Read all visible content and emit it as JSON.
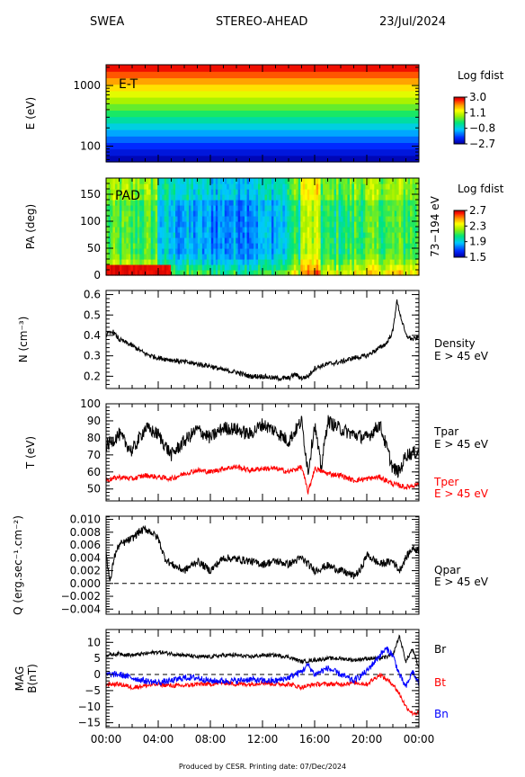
{
  "header": {
    "instrument": "SWEA",
    "spacecraft": "STEREO-AHEAD",
    "date": "23/Jul/2024"
  },
  "footer": "Produced by CESR.   Printing date: 07/Dec/2024",
  "x_axis": {
    "ticks": [
      "00:00",
      "04:00",
      "08:00",
      "12:00",
      "16:00",
      "20:00",
      "00:00"
    ],
    "range_hours": [
      0,
      24
    ]
  },
  "colors": {
    "black": "#000000",
    "red": "#ff0000",
    "blue": "#0000ff"
  },
  "chart_data": [
    {
      "type": "heatmap",
      "ylabel": "E (eV)",
      "yscale": "log",
      "ylim": [
        55,
        2200
      ],
      "yticks": [
        "1000",
        "100"
      ],
      "ytick_values": [
        1000,
        100
      ],
      "panel_label": "E-T",
      "colorbar": {
        "title": "Log fdist",
        "ticks": [
          "3.0",
          "1.1",
          "−0.8",
          "−2.7"
        ],
        "range": [
          -2.7,
          3.0
        ]
      },
      "energy_rows_logf": [
        -2.6,
        -2.3,
        -2.0,
        -1.6,
        -1.2,
        -0.8,
        -0.4,
        0.0,
        0.4,
        0.8,
        1.2,
        1.6,
        2.0,
        2.4,
        2.8
      ]
    },
    {
      "type": "heatmap",
      "ylabel": "PA (deg)",
      "ylim": [
        0,
        180
      ],
      "yticks": [
        "150",
        "100",
        "50",
        "0"
      ],
      "ytick_values": [
        150,
        100,
        50,
        0
      ],
      "panel_label": "PAD",
      "right_label": "73−194 eV",
      "colorbar": {
        "title": "Log fdist",
        "ticks": [
          "2.7",
          "2.3",
          "1.9",
          "1.5"
        ],
        "range": [
          1.5,
          2.7
        ]
      }
    },
    {
      "type": "line",
      "ylabel": "N (cm⁻³)",
      "ylim": [
        0.14,
        0.62
      ],
      "yticks": [
        "0.6",
        "0.5",
        "0.4",
        "0.3",
        "0.2"
      ],
      "ytick_values": [
        0.6,
        0.5,
        0.4,
        0.3,
        0.2
      ],
      "series": [
        {
          "name": "Density",
          "label2": "E > 45 eV",
          "color": "black",
          "x": [
            0,
            0.5,
            1,
            2,
            3,
            4,
            5,
            6,
            7,
            8,
            9,
            10,
            11,
            12,
            13,
            14,
            14.5,
            15,
            15.5,
            16,
            17,
            18,
            19,
            20,
            21,
            21.5,
            22,
            22.3,
            22.7,
            23,
            23.5,
            24
          ],
          "y": [
            0.4,
            0.42,
            0.38,
            0.35,
            0.31,
            0.29,
            0.28,
            0.27,
            0.26,
            0.25,
            0.23,
            0.22,
            0.2,
            0.2,
            0.19,
            0.19,
            0.21,
            0.19,
            0.2,
            0.24,
            0.26,
            0.27,
            0.29,
            0.3,
            0.34,
            0.36,
            0.42,
            0.57,
            0.47,
            0.4,
            0.38,
            0.39
          ],
          "noise": 0.012
        }
      ]
    },
    {
      "type": "line",
      "ylabel": "T (eV)",
      "ylim": [
        43,
        100
      ],
      "yticks": [
        "100",
        "90",
        "80",
        "70",
        "60",
        "50"
      ],
      "ytick_values": [
        100,
        90,
        80,
        70,
        60,
        50
      ],
      "series": [
        {
          "name": "Tpar",
          "label2": "E > 45 eV",
          "color": "black",
          "x": [
            0,
            1,
            2,
            3,
            4,
            5,
            6,
            7,
            8,
            9,
            10,
            11,
            12,
            13,
            14,
            15,
            15.5,
            16,
            16.5,
            17,
            18,
            19,
            20,
            21,
            21.5,
            22,
            22.5,
            23,
            24
          ],
          "y": [
            75,
            82,
            72,
            86,
            82,
            70,
            78,
            85,
            80,
            86,
            85,
            82,
            88,
            84,
            78,
            90,
            60,
            88,
            62,
            90,
            85,
            82,
            80,
            88,
            75,
            62,
            60,
            70,
            72
          ],
          "noise": 4
        },
        {
          "name": "Tper",
          "label2": "E > 45 eV",
          "color": "red",
          "x": [
            0,
            1,
            2,
            3,
            4,
            5,
            6,
            7,
            8,
            9,
            10,
            11,
            12,
            13,
            14,
            15,
            15.5,
            16,
            17,
            18,
            19,
            20,
            21,
            22,
            23,
            24
          ],
          "y": [
            55,
            57,
            56,
            58,
            57,
            56,
            59,
            61,
            60,
            62,
            63,
            61,
            62,
            62,
            60,
            63,
            48,
            62,
            59,
            58,
            55,
            56,
            57,
            53,
            51,
            53
          ],
          "noise": 1.5
        }
      ]
    },
    {
      "type": "line",
      "ylabel": "Q (erg.sec⁻¹.cm⁻²)",
      "ylim": [
        -0.0048,
        0.0105
      ],
      "yticks": [
        "0.010",
        "0.008",
        "0.006",
        "0.004",
        "0.002",
        "0.000",
        "−0.002",
        "−0.004"
      ],
      "ytick_values": [
        0.01,
        0.008,
        0.006,
        0.004,
        0.002,
        0.0,
        -0.002,
        -0.004
      ],
      "zero_line": true,
      "series": [
        {
          "name": "Qpar",
          "label2": "E > 45 eV",
          "color": "black",
          "x": [
            0,
            0.3,
            0.6,
            1,
            1.5,
            2,
            2.5,
            3,
            3.5,
            4,
            4.5,
            5,
            6,
            7,
            8,
            9,
            10,
            11,
            12,
            13,
            14,
            15,
            16,
            17,
            18,
            19,
            19.5,
            20,
            21,
            22,
            22.5,
            23,
            23.5,
            24
          ],
          "y": [
            0.005,
            0.0,
            0.004,
            0.006,
            0.0065,
            0.007,
            0.008,
            0.0085,
            0.008,
            0.007,
            0.004,
            0.003,
            0.002,
            0.0035,
            0.002,
            0.004,
            0.0038,
            0.0035,
            0.003,
            0.0035,
            0.003,
            0.004,
            0.002,
            0.0028,
            0.002,
            0.0012,
            0.002,
            0.0045,
            0.003,
            0.0035,
            0.002,
            0.004,
            0.0055,
            0.0052
          ],
          "noise": 0.0006
        }
      ]
    },
    {
      "type": "line",
      "ylabel": "MAG",
      "ylabel2": "B(nT)",
      "ylim": [
        -16.5,
        14
      ],
      "yticks": [
        "10",
        "5",
        "0",
        "−5",
        "−10",
        "−15"
      ],
      "ytick_values": [
        10,
        5,
        0,
        -5,
        -10,
        -15
      ],
      "zero_line": true,
      "series": [
        {
          "name": "Br",
          "color": "black",
          "x": [
            0,
            1,
            2,
            3,
            4,
            5,
            6,
            7,
            8,
            9,
            10,
            11,
            12,
            13,
            14,
            15,
            16,
            17,
            18,
            19,
            20,
            21,
            22,
            22.5,
            23,
            23.5,
            24
          ],
          "y": [
            6,
            6.5,
            6,
            6.5,
            7,
            6.5,
            6,
            5.5,
            5.5,
            6,
            6,
            5.5,
            6,
            6,
            5.5,
            4,
            4.5,
            5,
            5,
            4.5,
            5,
            5,
            6,
            12,
            4,
            8,
            2
          ],
          "noise": 0.6
        },
        {
          "name": "Bt",
          "color": "red",
          "x": [
            0,
            1,
            2,
            3,
            4,
            5,
            6,
            7,
            8,
            9,
            10,
            11,
            12,
            13,
            14,
            15,
            16,
            17,
            18,
            19,
            20,
            21,
            22,
            22.5,
            23,
            23.5,
            24
          ],
          "y": [
            -3,
            -3,
            -4,
            -3.5,
            -3,
            -3.5,
            -3.5,
            -3,
            -3,
            -2.5,
            -3,
            -3,
            -2.5,
            -3,
            -3,
            -4,
            -3,
            -3,
            -3,
            -2.5,
            -3,
            0,
            -3,
            -6,
            -10,
            -12,
            -12
          ],
          "noise": 0.7
        },
        {
          "name": "Bn",
          "color": "blue",
          "x": [
            0,
            1,
            2,
            3,
            4,
            5,
            6,
            7,
            8,
            9,
            10,
            11,
            12,
            13,
            14,
            15,
            15.5,
            16,
            17,
            18,
            19,
            20,
            21,
            21.5,
            22,
            22.5,
            23,
            23.5,
            24
          ],
          "y": [
            0,
            0,
            -1,
            -2,
            -2.5,
            -2,
            -1,
            -1,
            -2,
            -2,
            -2,
            -1.5,
            -2,
            -2,
            -1,
            1,
            3,
            0,
            2,
            0,
            -2,
            1,
            6,
            8,
            6,
            0,
            -4,
            1,
            -3
          ],
          "noise": 1.0
        }
      ]
    }
  ]
}
